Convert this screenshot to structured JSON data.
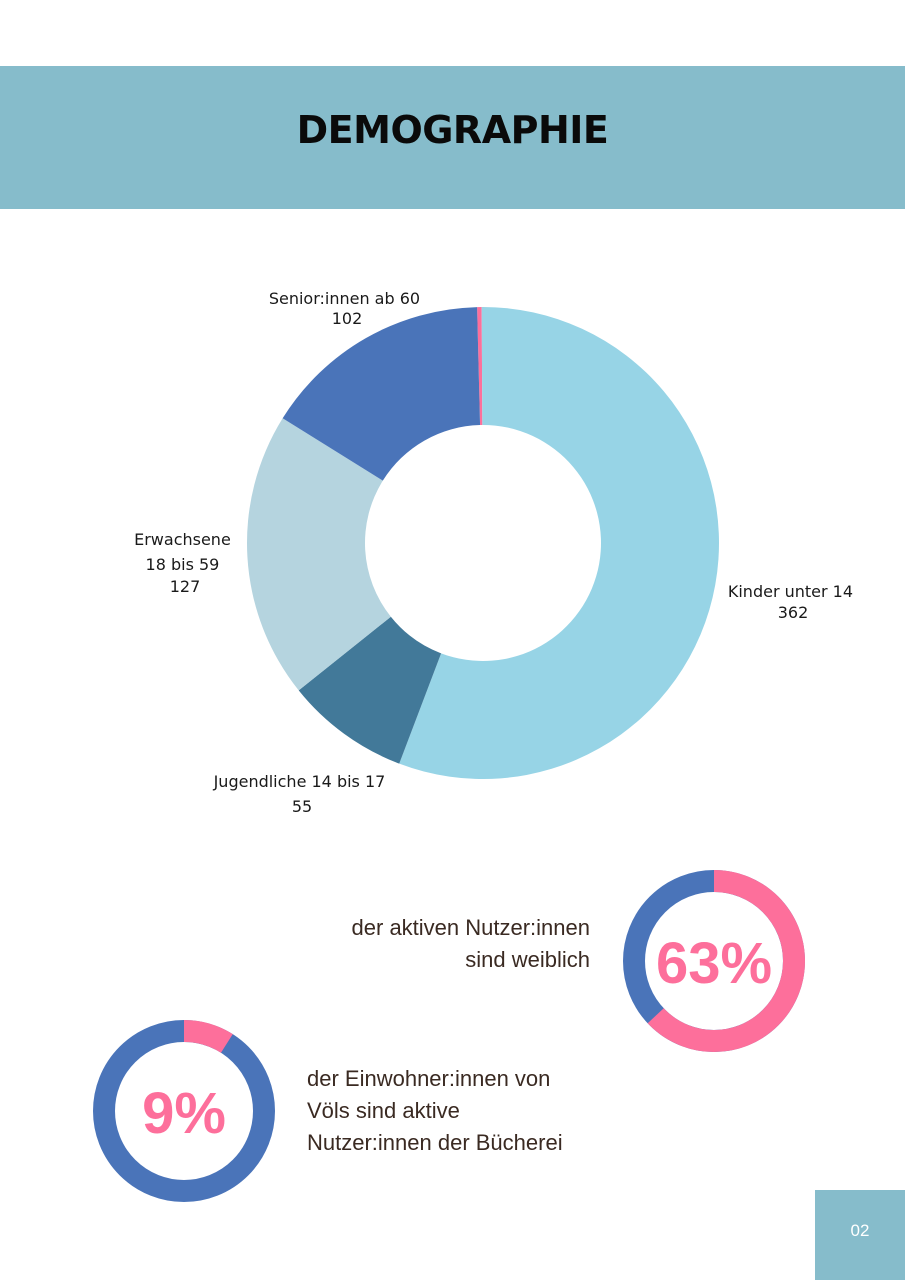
{
  "header": {
    "title": "DEMOGRAPHIE"
  },
  "colors": {
    "band": "#86bccb",
    "kinder": "#97d4e6",
    "jugendliche": "#427999",
    "erwachsene": "#b5d4df",
    "senioren": "#4a74b9",
    "sliver": "#fd6f9b",
    "pink": "#fd6f9b",
    "blue": "#4a74b9"
  },
  "chart_data": [
    {
      "type": "pie",
      "variant": "donut",
      "title": "",
      "slices": [
        {
          "key": "sliver",
          "label": "",
          "value": 2,
          "color": "#fd6f9b"
        },
        {
          "key": "kinder",
          "label": "Kinder unter 14",
          "value": 362,
          "color": "#97d4e6"
        },
        {
          "key": "jugendliche",
          "label": "Jugendliche 14 bis 17",
          "value": 55,
          "color": "#427999"
        },
        {
          "key": "erwachsene",
          "label": "Erwachsene 18 bis 59",
          "value": 127,
          "color": "#b5d4df"
        },
        {
          "key": "senioren",
          "label": "Senior:innen ab 60",
          "value": 102,
          "color": "#4a74b9"
        }
      ],
      "labels": {
        "kinder": [
          "Kinder unter 14",
          "362"
        ],
        "jugendliche": [
          "Jugendliche 14 bis 17",
          "55"
        ],
        "erwachsene": [
          "Erwachsene",
          "18 bis 59",
          "127"
        ],
        "senioren": [
          "Senior:innen ab 60",
          "102"
        ]
      }
    },
    {
      "type": "pie",
      "variant": "ring",
      "title": "63%",
      "percent": 63,
      "caption": "der aktiven Nutzer:innen sind weiblich"
    },
    {
      "type": "pie",
      "variant": "ring",
      "title": "9%",
      "percent": 9,
      "caption": "der Einwohner:innen von Völs sind aktive Nutzer:innen der Bücherei"
    }
  ],
  "stats": {
    "female": {
      "pct": "63%",
      "line1": "der aktiven Nutzer:innen",
      "line2": "sind weiblich"
    },
    "residents": {
      "pct": "9%",
      "line1": "der Einwohner:innen von",
      "line2": "Völs sind aktive",
      "line3": "Nutzer:innen der Bücherei"
    }
  },
  "page": {
    "number": "02"
  }
}
